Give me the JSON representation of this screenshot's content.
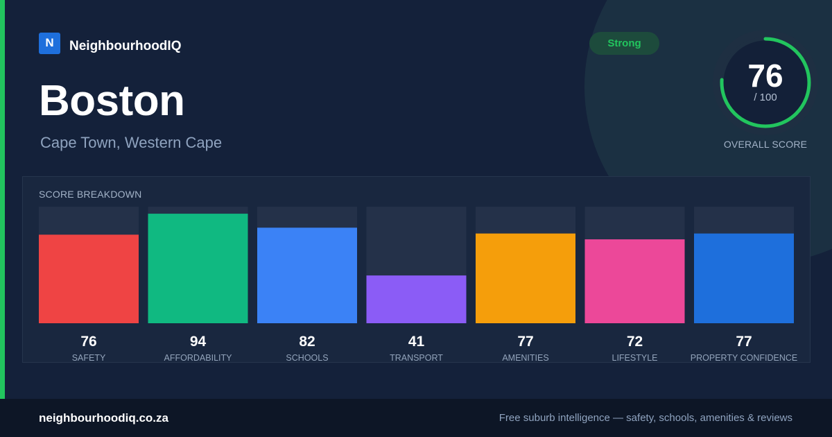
{
  "brand": {
    "logo_letter": "N",
    "name": "NeighbourhoodIQ"
  },
  "header": {
    "title": "Boston",
    "subtitle": "Cape Town, Western Cape",
    "badge": "Strong"
  },
  "overall": {
    "score": 76,
    "max_label": "/ 100",
    "label": "OVERALL SCORE",
    "ring_color": "#22c55e"
  },
  "breakdown": {
    "title": "SCORE BREAKDOWN"
  },
  "chart_data": {
    "type": "bar",
    "categories": [
      "SAFETY",
      "AFFORDABILITY",
      "SCHOOLS",
      "TRANSPORT",
      "AMENITIES",
      "LIFESTYLE",
      "PROPERTY CONFIDENCE"
    ],
    "values": [
      76,
      94,
      82,
      41,
      77,
      72,
      77
    ],
    "colors": [
      "#ef4444",
      "#10b981",
      "#3b82f6",
      "#8b5cf6",
      "#f59e0b",
      "#ec4899",
      "#1e6fdc"
    ],
    "ylim": [
      0,
      100
    ],
    "track_color": "#243149"
  },
  "footer": {
    "url": "neighbourhoodiq.co.za",
    "tagline": "Free suburb intelligence — safety, schools, amenities & reviews"
  }
}
